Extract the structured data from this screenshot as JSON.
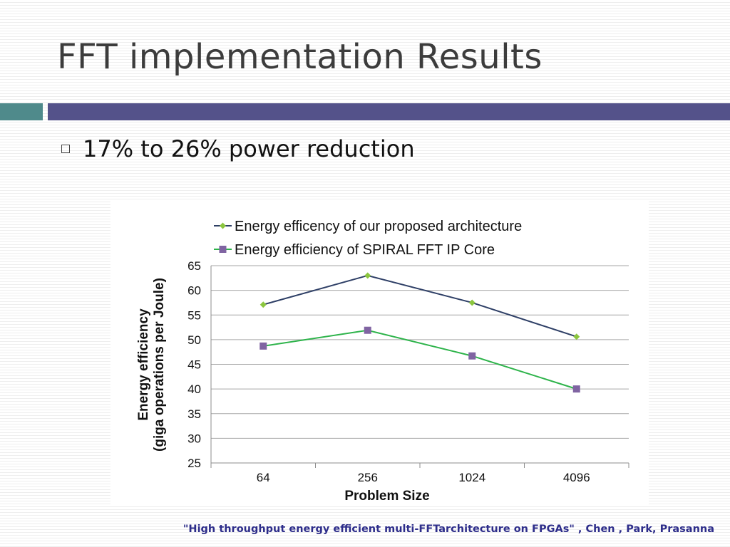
{
  "slide": {
    "title": "FFT implementation Results",
    "bullet": "17% to 26% power reduction",
    "citation": "\"High throughput energy efficient multi-FFTarchitecture on FPGAs\" , Chen , Park, Prasanna"
  },
  "colors": {
    "accent_teal": "#4f8a8b",
    "accent_purple": "#54528a",
    "series_proposed": "#2e3f66",
    "series_spiral": "#2db34a",
    "marker_proposed": "#8cc63f",
    "marker_spiral": "#8064a2"
  },
  "chart_data": {
    "type": "line",
    "categories": [
      "64",
      "256",
      "1024",
      "4096"
    ],
    "series": [
      {
        "name": "Energy efficency of our proposed architecture",
        "values": [
          57.1,
          63.0,
          57.5,
          50.6
        ],
        "marker": "diamond"
      },
      {
        "name": "Energy efficiency of SPIRAL FFT IP Core",
        "values": [
          48.7,
          51.9,
          46.7,
          40.0
        ],
        "marker": "square"
      }
    ],
    "xlabel": "Problem Size",
    "ylabel_line1": "Energy efficiency",
    "ylabel_line2": "(giga operations per Joule)",
    "ylim": [
      25,
      65
    ],
    "yticks": [
      25,
      30,
      35,
      40,
      45,
      50,
      55,
      60,
      65
    ],
    "grid": true,
    "legend_position": "top"
  }
}
